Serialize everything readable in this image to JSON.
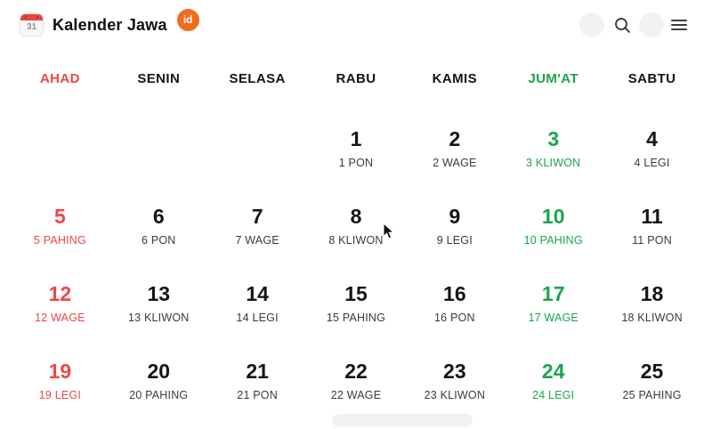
{
  "header": {
    "app_title": "Kalender Jawa",
    "badge_label": "id",
    "calendar_icon_number": "31",
    "icons": [
      "calendar-icon",
      "search-icon",
      "menu-icon"
    ]
  },
  "weekdays": [
    {
      "label": "AHAD",
      "variant": "sunday"
    },
    {
      "label": "SENIN",
      "variant": "default"
    },
    {
      "label": "SELASA",
      "variant": "default"
    },
    {
      "label": "RABU",
      "variant": "default"
    },
    {
      "label": "KAMIS",
      "variant": "default"
    },
    {
      "label": "JUM'AT",
      "variant": "friday"
    },
    {
      "label": "SABTU",
      "variant": "default"
    }
  ],
  "calendar": {
    "cells": [
      {
        "row": 0,
        "col": 3,
        "day": "1",
        "javanese": "1 PON",
        "variant": "default"
      },
      {
        "row": 0,
        "col": 4,
        "day": "2",
        "javanese": "2 WAGE",
        "variant": "default"
      },
      {
        "row": 0,
        "col": 5,
        "day": "3",
        "javanese": "3 KLIWON",
        "variant": "friday"
      },
      {
        "row": 0,
        "col": 6,
        "day": "4",
        "javanese": "4 LEGI",
        "variant": "default"
      },
      {
        "row": 1,
        "col": 0,
        "day": "5",
        "javanese": "5 PAHING",
        "variant": "sunday"
      },
      {
        "row": 1,
        "col": 1,
        "day": "6",
        "javanese": "6 PON",
        "variant": "default"
      },
      {
        "row": 1,
        "col": 2,
        "day": "7",
        "javanese": "7 WAGE",
        "variant": "default"
      },
      {
        "row": 1,
        "col": 3,
        "day": "8",
        "javanese": "8 KLIWON",
        "variant": "default"
      },
      {
        "row": 1,
        "col": 4,
        "day": "9",
        "javanese": "9 LEGI",
        "variant": "default"
      },
      {
        "row": 1,
        "col": 5,
        "day": "10",
        "javanese": "10 PAHING",
        "variant": "friday"
      },
      {
        "row": 1,
        "col": 6,
        "day": "11",
        "javanese": "11 PON",
        "variant": "default"
      },
      {
        "row": 2,
        "col": 0,
        "day": "12",
        "javanese": "12 WAGE",
        "variant": "sunday"
      },
      {
        "row": 2,
        "col": 1,
        "day": "13",
        "javanese": "13 KLIWON",
        "variant": "default"
      },
      {
        "row": 2,
        "col": 2,
        "day": "14",
        "javanese": "14 LEGI",
        "variant": "default"
      },
      {
        "row": 2,
        "col": 3,
        "day": "15",
        "javanese": "15 PAHING",
        "variant": "default"
      },
      {
        "row": 2,
        "col": 4,
        "day": "16",
        "javanese": "16 PON",
        "variant": "default"
      },
      {
        "row": 2,
        "col": 5,
        "day": "17",
        "javanese": "17 WAGE",
        "variant": "friday"
      },
      {
        "row": 2,
        "col": 6,
        "day": "18",
        "javanese": "18 KLIWON",
        "variant": "default"
      },
      {
        "row": 3,
        "col": 0,
        "day": "19",
        "javanese": "19 LEGI",
        "variant": "sunday"
      },
      {
        "row": 3,
        "col": 1,
        "day": "20",
        "javanese": "20 PAHING",
        "variant": "default"
      },
      {
        "row": 3,
        "col": 2,
        "day": "21",
        "javanese": "21 PON",
        "variant": "default"
      },
      {
        "row": 3,
        "col": 3,
        "day": "22",
        "javanese": "22 WAGE",
        "variant": "default"
      },
      {
        "row": 3,
        "col": 4,
        "day": "23",
        "javanese": "23 KLIWON",
        "variant": "default"
      },
      {
        "row": 3,
        "col": 5,
        "day": "24",
        "javanese": "24 LEGI",
        "variant": "friday"
      },
      {
        "row": 3,
        "col": 6,
        "day": "25",
        "javanese": "25 PAHING",
        "variant": "default"
      }
    ],
    "num_rows": 4,
    "num_cols": 7
  },
  "colors": {
    "sunday_red": "#ee4746",
    "friday_green": "#1ba44c",
    "badge_orange": "#f26b1d",
    "calendar_icon_red": "#e9453f"
  }
}
